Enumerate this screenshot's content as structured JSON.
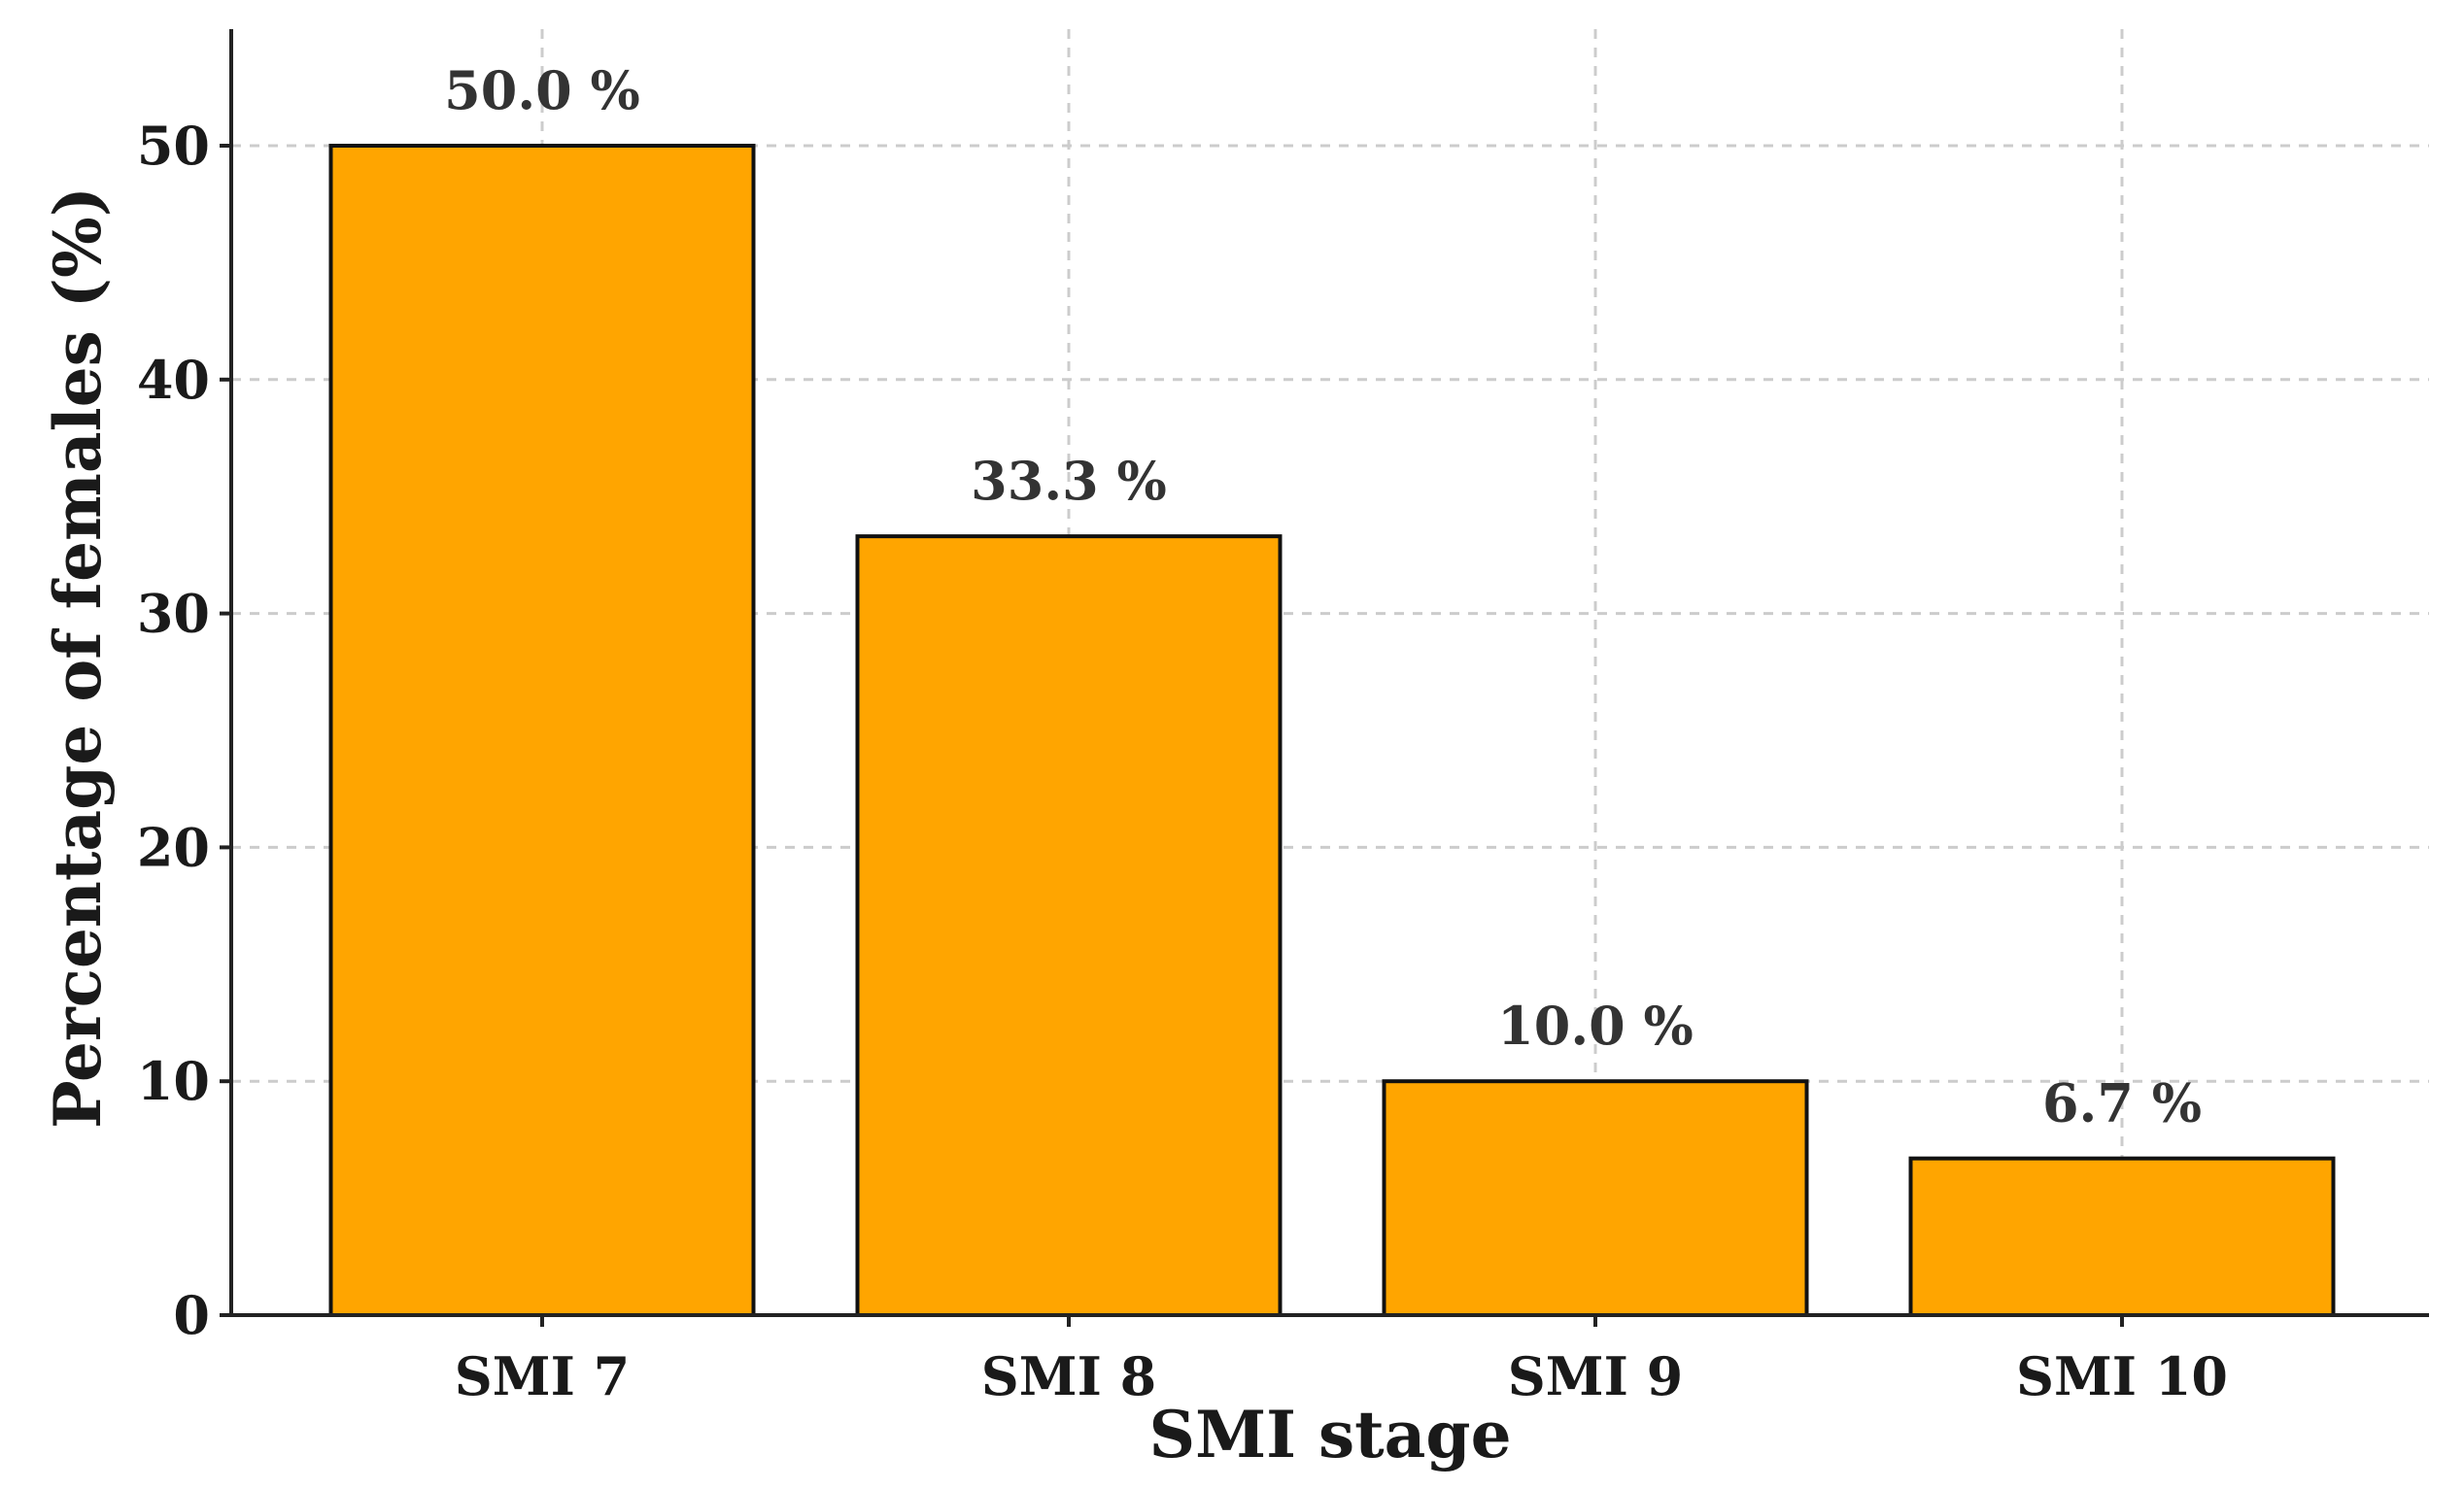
{
  "chart_data": {
    "type": "bar",
    "categories": [
      "SMI 7",
      "SMI 8",
      "SMI 9",
      "SMI 10"
    ],
    "values": [
      50.0,
      33.3,
      10.0,
      6.7
    ],
    "data_labels": [
      "50.0 %",
      "33.3 %",
      "10.0 %",
      "6.7 %"
    ],
    "title": "",
    "xlabel": "SMI stage",
    "ylabel": "Percentage of females (%)",
    "ylim": [
      0,
      55
    ],
    "yticks": [
      0,
      10,
      20,
      30,
      40,
      50
    ],
    "grid": true,
    "bar_color": "#FFA500",
    "edge_color": "#111111"
  }
}
